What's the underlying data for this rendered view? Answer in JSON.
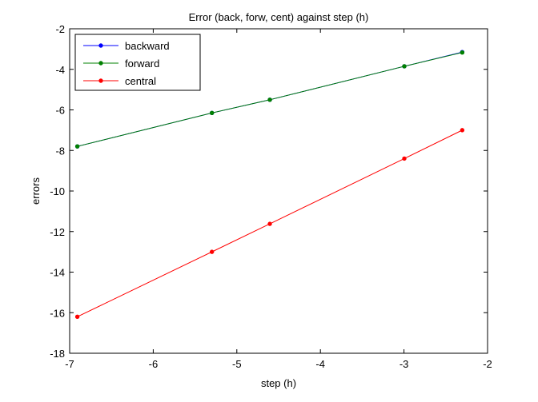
{
  "chart_data": {
    "type": "line",
    "title": "Error (back, forw, cent) against step (h)",
    "xlabel": "step (h)",
    "ylabel": "errors",
    "xlim": [
      -7,
      -2
    ],
    "ylim": [
      -18,
      -2
    ],
    "xticks": [
      -7,
      -6,
      -5,
      -4,
      -3,
      -2
    ],
    "yticks": [
      -18,
      -16,
      -14,
      -12,
      -10,
      -8,
      -6,
      -4,
      -2
    ],
    "grid": false,
    "legend_position": "top-left",
    "series": [
      {
        "name": "backward",
        "color": "#0000ff",
        "marker": "dot",
        "x": [
          -6.908,
          -5.298,
          -4.605,
          -2.996,
          -2.303
        ],
        "y": [
          -7.8,
          -6.15,
          -5.5,
          -3.85,
          -3.15
        ]
      },
      {
        "name": "forward",
        "color": "#008000",
        "marker": "dot",
        "x": [
          -6.908,
          -5.298,
          -4.605,
          -2.996,
          -2.303
        ],
        "y": [
          -7.8,
          -6.15,
          -5.5,
          -3.85,
          -3.17
        ]
      },
      {
        "name": "central",
        "color": "#ff0000",
        "marker": "dot",
        "x": [
          -6.908,
          -5.298,
          -4.605,
          -2.996,
          -2.303
        ],
        "y": [
          -16.2,
          -13.0,
          -11.62,
          -8.4,
          -7.0
        ]
      }
    ]
  }
}
